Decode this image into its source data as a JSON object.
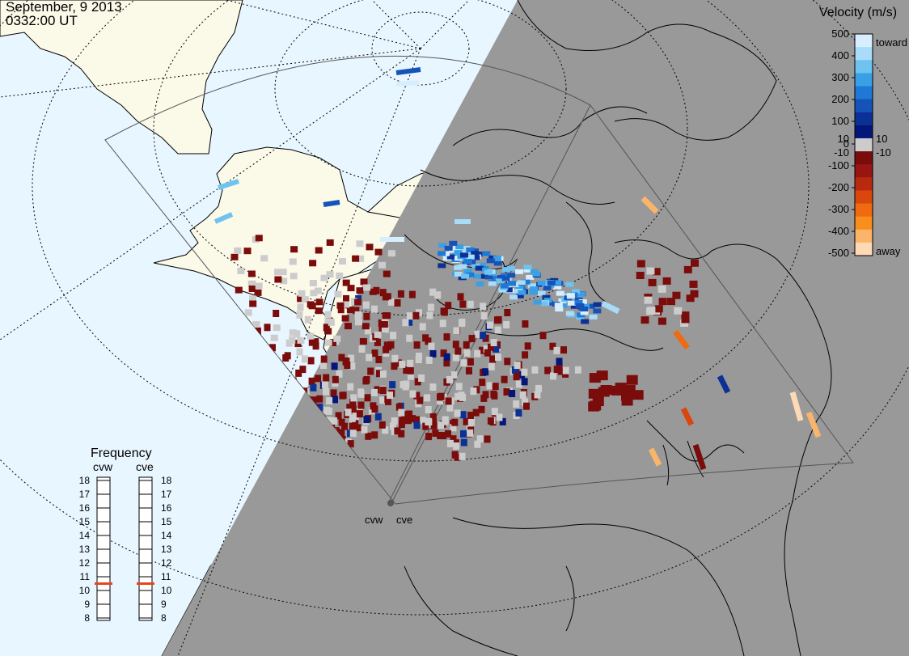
{
  "header": {
    "date": "September, 9 2013",
    "time": "0332:00 UT"
  },
  "legend": {
    "title": "Velocity (m/s)",
    "toward_label": "toward",
    "away_label": "away",
    "ticks": [
      "500",
      "400",
      "300",
      "200",
      "100",
      "10",
      "0",
      "-10",
      "-100",
      "-200",
      "-300",
      "-400",
      "-500"
    ],
    "colors": [
      "#d7eeff",
      "#a9dcf9",
      "#6ec3f0",
      "#3aa0e6",
      "#1f78d6",
      "#1553b8",
      "#0b3196",
      "#041778",
      "#cccccc",
      "#7a0c0c",
      "#981512",
      "#b82a10",
      "#d9470d",
      "#ef6a10",
      "#f98e1d",
      "#fbb56a",
      "#fdd9b5"
    ],
    "night_color": "#999999",
    "land_color": "#fbf9e8",
    "ocean_color": "#e8f6ff",
    "ground_scatter_color": "#cccccc"
  },
  "frequency": {
    "title": "Frequency",
    "radars": [
      "cvw",
      "cve"
    ],
    "scale": [
      "18",
      "17",
      "16",
      "15",
      "14",
      "13",
      "12",
      "11",
      "10",
      "9",
      "8"
    ],
    "values_mhz": [
      10.5,
      10.5
    ],
    "marker_color": "#e8451f"
  },
  "map": {
    "radar_sites": [
      "cvw",
      "cve"
    ],
    "region": "North America"
  }
}
